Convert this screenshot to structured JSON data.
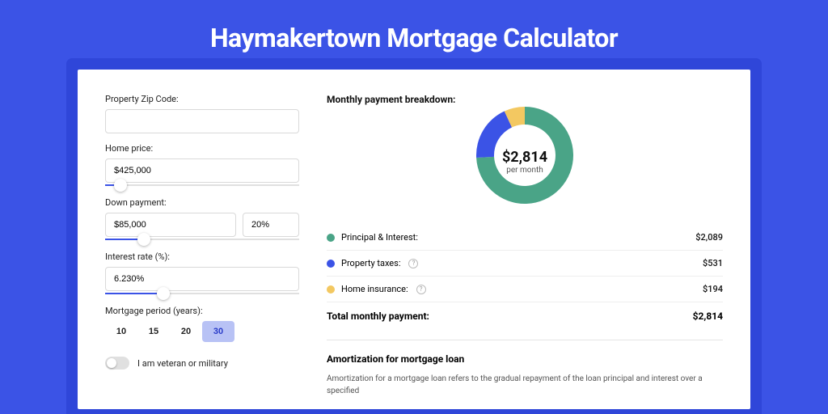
{
  "page": {
    "title": "Haymakertown Mortgage Calculator",
    "background_color": "#3b53e6",
    "outer_shadow_color": "#2f46d9"
  },
  "form": {
    "zip_label": "Property Zip Code:",
    "zip_value": "",
    "home_price_label": "Home price:",
    "home_price_value": "$425,000",
    "home_price_slider_pct": 8,
    "down_label": "Down payment:",
    "down_value": "$85,000",
    "down_pct_value": "20%",
    "down_slider_pct": 20,
    "rate_label": "Interest rate (%):",
    "rate_value": "6.230%",
    "rate_slider_pct": 30,
    "period_label": "Mortgage period (years):",
    "periods": [
      "10",
      "15",
      "20",
      "30"
    ],
    "period_selected": "30",
    "veteran_label": "I am veteran or military",
    "veteran_on": false
  },
  "breakdown": {
    "title": "Monthly payment breakdown:",
    "center_amount": "$2,814",
    "center_sub": "per month",
    "donut": {
      "outer_radius": 60,
      "inner_radius": 38,
      "slices": [
        {
          "label": "principal_interest",
          "value": 2089,
          "color": "#4aa487",
          "pct": 74.2
        },
        {
          "label": "property_taxes",
          "value": 531,
          "color": "#3b53e6",
          "pct": 18.9
        },
        {
          "label": "home_insurance",
          "value": 194,
          "color": "#f3c861",
          "pct": 6.9
        }
      ],
      "background_color": "#ffffff"
    },
    "items": [
      {
        "label": "Principal & Interest:",
        "value": "$2,089",
        "color": "#4aa487",
        "has_info": false
      },
      {
        "label": "Property taxes:",
        "value": "$531",
        "color": "#3b53e6",
        "has_info": true
      },
      {
        "label": "Home insurance:",
        "value": "$194",
        "color": "#f3c861",
        "has_info": true
      }
    ],
    "total_label": "Total monthly payment:",
    "total_value": "$2,814"
  },
  "amortization": {
    "title": "Amortization for mortgage loan",
    "text": "Amortization for a mortgage loan refers to the gradual repayment of the loan principal and interest over a specified"
  },
  "colors": {
    "text": "#222222",
    "border": "#d9d9d9",
    "slider_track": "#e0e0e0",
    "slider_fill": "#3b53e6",
    "period_active_bg": "#b8c2f5",
    "period_active_fg": "#2a3cc9"
  }
}
